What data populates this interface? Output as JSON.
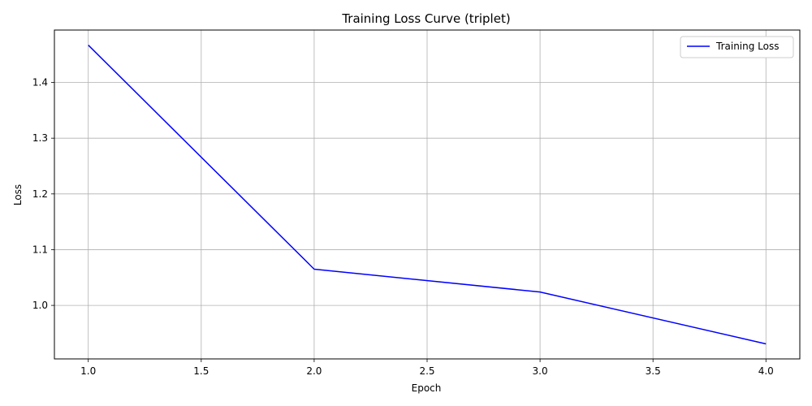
{
  "chart_data": {
    "type": "line",
    "title": "Training Loss Curve (triplet)",
    "xlabel": "Epoch",
    "ylabel": "Loss",
    "x": [
      1,
      2,
      3,
      4
    ],
    "series": [
      {
        "name": "Training Loss",
        "values": [
          1.467,
          1.065,
          1.024,
          0.931
        ],
        "color": "#0000ff"
      }
    ],
    "xlim": [
      0.85,
      4.15
    ],
    "ylim": [
      0.904,
      1.494
    ],
    "xticks": [
      1.0,
      1.5,
      2.0,
      2.5,
      3.0,
      3.5,
      4.0
    ],
    "xtick_labels": [
      "1.0",
      "1.5",
      "2.0",
      "2.5",
      "3.0",
      "3.5",
      "4.0"
    ],
    "yticks": [
      1.0,
      1.1,
      1.2,
      1.3,
      1.4
    ],
    "ytick_labels": [
      "1.0",
      "1.1",
      "1.2",
      "1.3",
      "1.4"
    ],
    "grid": true,
    "legend_position": "top-right"
  }
}
